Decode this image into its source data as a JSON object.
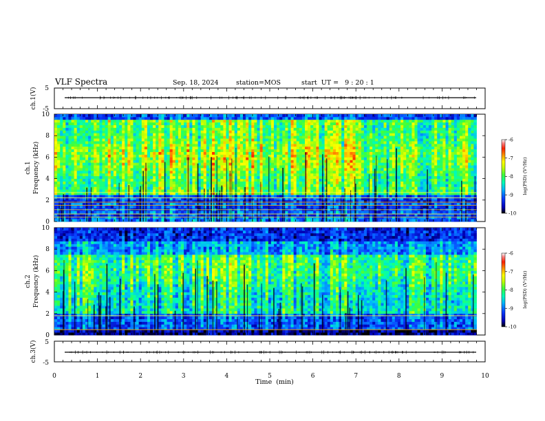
{
  "header": {
    "title": "VLF Spectra",
    "date": "Sep. 18, 2024",
    "station": "station=MOS",
    "start": "start  UT =   9 : 20 : 1"
  },
  "chart_data": [
    {
      "type": "line",
      "panel": "ch1-waveform",
      "ylabel": "ch.1(V)",
      "ylim": [
        -5,
        5
      ],
      "yticks": [
        "5",
        "-5"
      ],
      "xlim": [
        0,
        10
      ],
      "series": [
        {
          "values": [
            0.0,
            0.0
          ]
        }
      ]
    },
    {
      "type": "heatmap",
      "panel": "ch1-spectrogram",
      "ylabel": "ch.1\nFrequency  (kHz)",
      "ylim": [
        0,
        10
      ],
      "yticks": [
        "0",
        "2",
        "4",
        "6",
        "8",
        "10"
      ],
      "xlim": [
        0,
        9.8
      ],
      "colorbar": {
        "label": "log(PSD) (V²/Hz)",
        "range": [
          -10,
          -6
        ],
        "ticks": [
          "-6",
          "-7",
          "-8",
          "-9",
          "-10"
        ]
      },
      "interference_lines_khz": [
        0.4,
        0.7,
        1.1,
        1.5,
        1.8,
        2.2,
        2.7
      ]
    },
    {
      "type": "heatmap",
      "panel": "ch2-spectrogram",
      "ylabel": "ch.2\nFrequency  (kHz)",
      "ylim": [
        0,
        10
      ],
      "yticks": [
        "0",
        "2",
        "4",
        "6",
        "8",
        "10"
      ],
      "xlim": [
        0,
        9.8
      ],
      "colorbar": {
        "label": "log(PSD) (V²/Hz)",
        "range": [
          -10,
          -6
        ],
        "ticks": [
          "-6",
          "-7",
          "-8",
          "-9",
          "-10"
        ]
      },
      "interference_lines_khz": [
        0.5,
        1.8
      ]
    },
    {
      "type": "line",
      "panel": "ch3-waveform",
      "ylabel": "ch.3(V)",
      "ylim": [
        -5,
        5
      ],
      "yticks": [
        "5",
        "-5"
      ],
      "xlim": [
        0,
        10
      ],
      "series": [
        {
          "values": [
            0.0,
            0.0
          ]
        }
      ]
    }
  ],
  "xaxis": {
    "label": "Time  (min)",
    "range": [
      0,
      10
    ],
    "ticks": [
      "0",
      "1",
      "2",
      "3",
      "4",
      "5",
      "6",
      "7",
      "8",
      "9",
      "10"
    ]
  },
  "colors": {
    "colormap": [
      "#000000",
      "#0000b4",
      "#0a3cff",
      "#00b4ff",
      "#00ffb4",
      "#3cff3c",
      "#c8ff00",
      "#ffff00",
      "#ffa000",
      "#ff2000",
      "#ff8080",
      "#ffffff"
    ]
  }
}
